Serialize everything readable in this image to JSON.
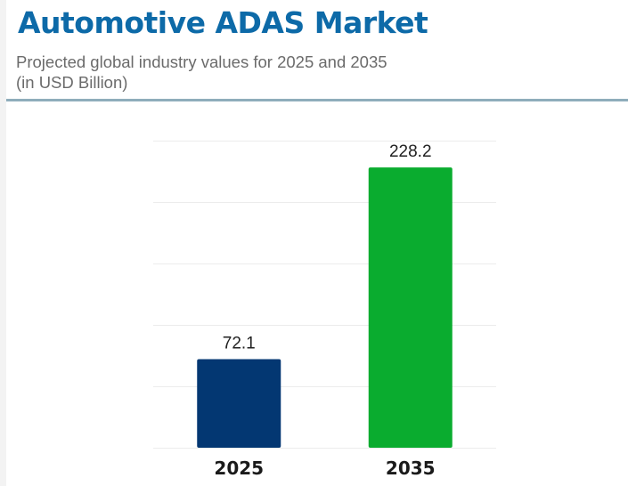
{
  "header": {
    "title": "Automotive ADAS Market",
    "subtitle_line1": "Projected global industry values for 2025 and 2035",
    "subtitle_line2": "(in USD Billion)"
  },
  "colors": {
    "title": "#0d6aa8",
    "bar_2025": "#033772",
    "bar_2035": "#0aac2f"
  },
  "chart_data": {
    "type": "bar",
    "title": "Automotive ADAS Market",
    "subtitle": "Projected global industry values for 2025 and 2035 (in USD Billion)",
    "categories": [
      "2025",
      "2035"
    ],
    "values": [
      72.1,
      228.2
    ],
    "value_labels": [
      "72.1",
      "228.2"
    ],
    "bar_colors": [
      "#033772",
      "#0aac2f"
    ],
    "xlabel": "",
    "ylabel": "",
    "ylim": [
      0,
      250
    ],
    "y_axis_visible": false,
    "grid": true,
    "legend": "none"
  }
}
